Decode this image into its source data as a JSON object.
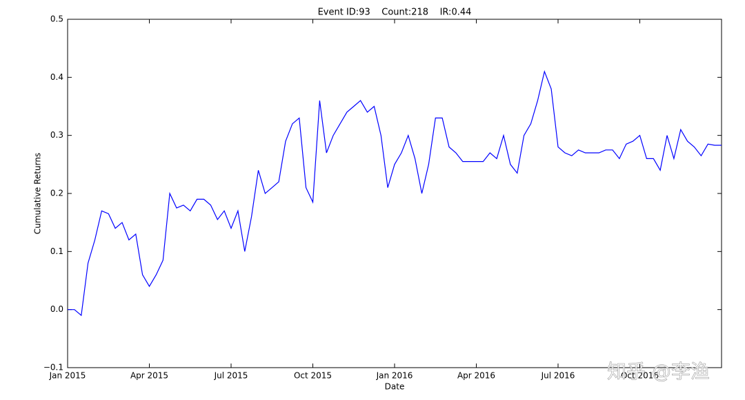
{
  "chart_data": {
    "type": "line",
    "title": "Event ID:93    Count:218    IR:0.44",
    "x_label": "Date",
    "y_label": "Cumulative Returns",
    "watermark": "知乎 @李渔",
    "categories": [
      "Jan 2015",
      null,
      null,
      null,
      null,
      null,
      null,
      null,
      null,
      null,
      null,
      null,
      "Apr 2015",
      null,
      null,
      null,
      null,
      null,
      null,
      null,
      null,
      null,
      null,
      null,
      "Jul 2015",
      null,
      null,
      null,
      null,
      null,
      null,
      null,
      null,
      null,
      null,
      null,
      "Oct 2015",
      null,
      null,
      null,
      null,
      null,
      null,
      null,
      null,
      null,
      null,
      null,
      "Jan 2016",
      null,
      null,
      null,
      null,
      null,
      null,
      null,
      null,
      null,
      null,
      null,
      "Apr 2016",
      null,
      null,
      null,
      null,
      null,
      null,
      null,
      null,
      null,
      null,
      null,
      "Jul 2016",
      null,
      null,
      null,
      null,
      null,
      null,
      null,
      null,
      null,
      null,
      null,
      "Oct 2016",
      null,
      null,
      null,
      null,
      null,
      null,
      null,
      null,
      null,
      null,
      null,
      null
    ],
    "series": [
      {
        "color": "#0000ff",
        "values": [
          0,
          0,
          -0.01,
          0.08,
          0.12,
          0.17,
          0.165,
          0.14,
          0.15,
          0.12,
          0.13,
          0.06,
          0.04,
          0.06,
          0.085,
          0.2,
          0.175,
          0.18,
          0.17,
          0.19,
          0.19,
          0.18,
          0.155,
          0.17,
          0.14,
          0.17,
          0.1,
          0.16,
          0.24,
          0.2,
          0.21,
          0.22,
          0.29,
          0.32,
          0.33,
          0.21,
          0.185,
          0.36,
          0.27,
          0.3,
          0.32,
          0.34,
          0.35,
          0.36,
          0.34,
          0.35,
          0.3,
          0.21,
          0.25,
          0.27,
          0.3,
          0.26,
          0.2,
          0.25,
          0.33,
          0.33,
          0.28,
          0.27,
          0.255,
          0.255,
          0.255,
          0.255,
          0.27,
          0.26,
          0.3,
          0.25,
          0.235,
          0.3,
          0.32,
          0.36,
          0.41,
          0.38,
          0.28,
          0.27,
          0.265,
          0.275,
          0.27,
          0.27,
          0.27,
          0.275,
          0.275,
          0.26,
          0.285,
          0.29,
          0.3,
          0.26,
          0.26,
          0.24,
          0.3,
          0.26,
          0.31,
          0.29,
          0.28,
          0.265,
          0.285,
          0.283,
          0.283
        ]
      }
    ],
    "ylim": [
      -0.1,
      0.5
    ],
    "yticks": [
      {
        "value": -0.1,
        "label": "−0.1"
      },
      {
        "value": 0,
        "label": "0.0"
      },
      0.1,
      0.2,
      0.3,
      0.4,
      0.5
    ]
  }
}
